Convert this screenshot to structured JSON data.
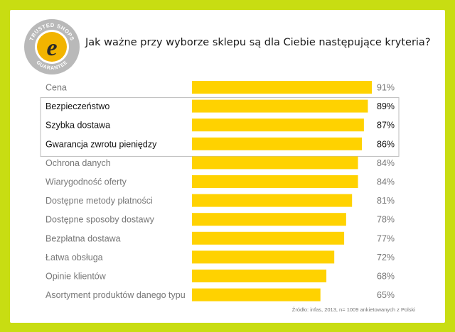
{
  "title": "Jak ważne przy wyborze sklepu są dla Ciebie następujące kryteria?",
  "logo": {
    "top_text": "TRUSTED SHOPS",
    "bottom_text": "GUARANTEE",
    "letter": "e"
  },
  "source": "Źródło: infas, 2013, n= 1009 ankietowanych z Polski",
  "colors": {
    "background": "#c8dd12",
    "bar": "#ffd200",
    "label_highlight": "#111111",
    "label_normal": "#777777",
    "highlight_border": "#bbbbbb",
    "logo_ring": "#b9b9b9",
    "logo_badge": "#2a5fae",
    "logo_gold": "#f2b400"
  },
  "chart_data": {
    "type": "bar",
    "orientation": "horizontal",
    "categories": [
      "Cena",
      "Bezpieczeństwo",
      "Szybka dostawa",
      "Gwarancja zwrotu pieniędzy",
      "Ochrona danych",
      "Wiarygodność oferty",
      "Dostępne metody płatności",
      "Dostępne sposoby dostawy",
      "Bezpłatna dostawa",
      "Łatwa obsługa",
      "Opinie klientów",
      "Asortyment produktów danego typu"
    ],
    "values": [
      91,
      89,
      87,
      86,
      84,
      84,
      81,
      78,
      77,
      72,
      68,
      65
    ],
    "value_labels": [
      "91%",
      "89%",
      "87%",
      "86%",
      "84%",
      "84%",
      "81%",
      "78%",
      "77%",
      "72%",
      "68%",
      "65%"
    ],
    "highlighted": [
      1,
      2,
      3
    ],
    "xlim": [
      0,
      91
    ],
    "grid": false,
    "legend": "none"
  }
}
